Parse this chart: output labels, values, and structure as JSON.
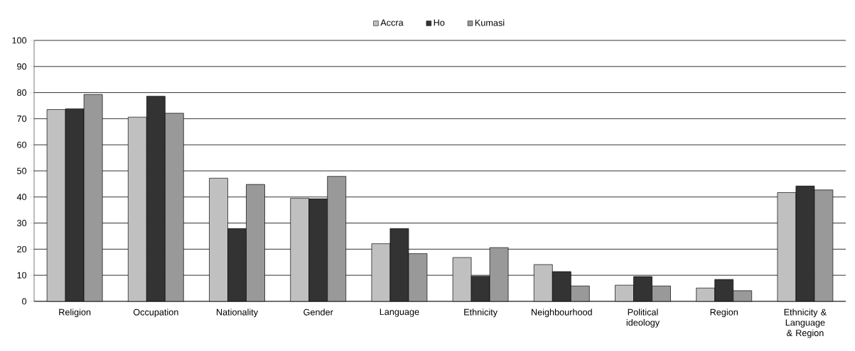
{
  "chart_data": {
    "type": "bar",
    "categories": [
      "Religion",
      "Occupation",
      "Nationality",
      "Gender",
      "Language",
      "Ethnicity",
      "Neighbourhood",
      "Political ideology",
      "Region",
      "Ethnicity & Language & Region"
    ],
    "series": [
      {
        "name": "Accra",
        "color": "#c0c0c0",
        "values": [
          73.5,
          70.6,
          47.2,
          39.5,
          22.1,
          16.8,
          14.1,
          6.2,
          5.1,
          41.7
        ]
      },
      {
        "name": "Ho",
        "color": "#333333",
        "values": [
          73.8,
          78.6,
          27.9,
          39.3,
          27.9,
          9.6,
          11.4,
          9.5,
          8.4,
          44.2
        ]
      },
      {
        "name": "Kumasi",
        "color": "#999999",
        "values": [
          79.3,
          72.1,
          44.8,
          47.9,
          18.3,
          20.6,
          5.9,
          5.9,
          4.1,
          42.7
        ]
      }
    ],
    "ylim": [
      0,
      100
    ],
    "yticks": [
      0,
      10,
      20,
      30,
      40,
      50,
      60,
      70,
      80,
      90,
      100
    ],
    "grid": "y",
    "legend": "top"
  }
}
